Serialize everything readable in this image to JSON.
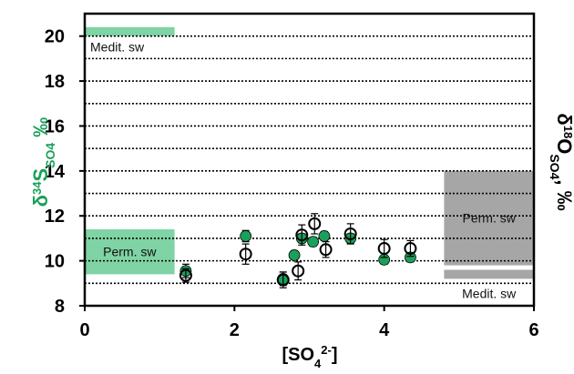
{
  "chart_data": {
    "type": "scatter",
    "xlim": [
      0,
      6
    ],
    "ylim": [
      8,
      21
    ],
    "xticks": [
      "0",
      "2",
      "4",
      "6"
    ],
    "yticks": [
      "8",
      "10",
      "12",
      "14",
      "16",
      "18",
      "20"
    ],
    "x_tick_values": [
      0,
      2,
      4,
      6
    ],
    "y_tick_values": [
      8,
      10,
      12,
      14,
      16,
      18,
      20
    ],
    "grid": "dotted horizontal lines every 1 unit",
    "xlabel": "[SO4 2-]",
    "ylabel_left": "δ34S SO4 ‰",
    "ylabel_right": "δ18O SO4 , ‰",
    "colors": {
      "green_series": "#1aa05a",
      "green_box": "#7fd3a4",
      "gray_box": "#a6a6a6",
      "open_series": "#000000"
    },
    "reference_boxes": [
      {
        "label": "Medit. sw",
        "x": [
          0,
          1.2
        ],
        "y": [
          20.0,
          20.4
        ],
        "color": "green"
      },
      {
        "label": "Perm. sw",
        "x": [
          0,
          1.2
        ],
        "y": [
          9.4,
          11.4
        ],
        "color": "green"
      },
      {
        "label": "Perm. sw",
        "x": [
          4.8,
          6
        ],
        "y": [
          9.8,
          14.0
        ],
        "color": "gray"
      },
      {
        "label": "Medit. sw",
        "x": [
          4.8,
          6
        ],
        "y": [
          9.2,
          9.6
        ],
        "color": "gray"
      }
    ],
    "series": [
      {
        "marker": "filled-circle",
        "axis": "left",
        "x": [
          1.35,
          2.15,
          2.65,
          2.8,
          2.9,
          3.05,
          3.2,
          3.55,
          4.0,
          4.35
        ],
        "y": [
          9.55,
          11.1,
          9.2,
          10.25,
          11.0,
          10.85,
          11.1,
          11.0,
          10.05,
          10.15
        ],
        "yerr": [
          0.3,
          0.25,
          0.3,
          0.2,
          0.2,
          0.2,
          0.2,
          0.2,
          0.2,
          0.2
        ]
      },
      {
        "marker": "open-circle",
        "axis": "right",
        "x": [
          1.35,
          2.15,
          2.65,
          2.85,
          2.9,
          3.07,
          3.22,
          3.55,
          4.0,
          4.35
        ],
        "y": [
          9.35,
          10.3,
          9.15,
          9.55,
          11.15,
          11.65,
          10.5,
          11.2,
          10.55,
          10.55
        ],
        "yerr": [
          0.3,
          0.45,
          0.35,
          0.4,
          0.45,
          0.45,
          0.35,
          0.45,
          0.4,
          0.35
        ]
      }
    ]
  }
}
